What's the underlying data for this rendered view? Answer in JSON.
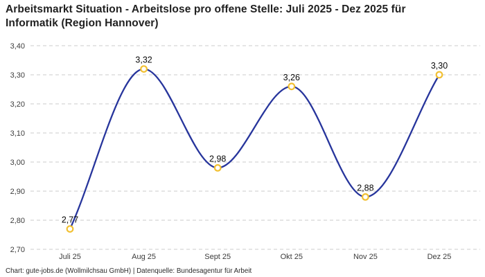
{
  "title": "Arbeitsmarkt Situation - Arbeitslose pro offene Stelle: Juli 2025 - Dez 2025 für\nInformatik (Region Hannover)",
  "footer": "Chart: gute-jobs.de (Wollmilchsau GmbH) | Datenquelle: Bundesagentur für Arbeit",
  "colors": {
    "background": "#ffffff",
    "line": "#27359C",
    "marker_ring": "#F2C032",
    "marker_fill": "#ffffff",
    "grid": "#cbcbcb",
    "title_text": "#212121",
    "axis_text": "#3c3c3c",
    "value_text": "#0a0a0a"
  },
  "chart_data": {
    "type": "line",
    "title": "Arbeitsmarkt Situation - Arbeitslose pro offene Stelle: Juli 2025 - Dez 2025 für Informatik (Region Hannover)",
    "categories": [
      "Juli 25",
      "Aug 25",
      "Sept 25",
      "Okt 25",
      "Nov 25",
      "Dez 25"
    ],
    "values": [
      2.77,
      3.32,
      2.98,
      3.26,
      2.88,
      3.3
    ],
    "value_labels": [
      "2,77",
      "3,32",
      "2,98",
      "3,26",
      "2,88",
      "3,30"
    ],
    "ylim": [
      2.7,
      3.4
    ],
    "yticks": {
      "values": [
        2.7,
        2.8,
        2.9,
        3.0,
        3.1,
        3.2,
        3.3,
        3.4
      ],
      "labels": [
        "2,70",
        "2,80",
        "2,90",
        "3,00",
        "3,10",
        "3,20",
        "3,30",
        "3,40"
      ]
    },
    "xlabel": "",
    "ylabel": "",
    "grid": "horizontal-dashed",
    "legend": "none",
    "line_style": "smooth-monotone",
    "marker": "open-circle"
  }
}
